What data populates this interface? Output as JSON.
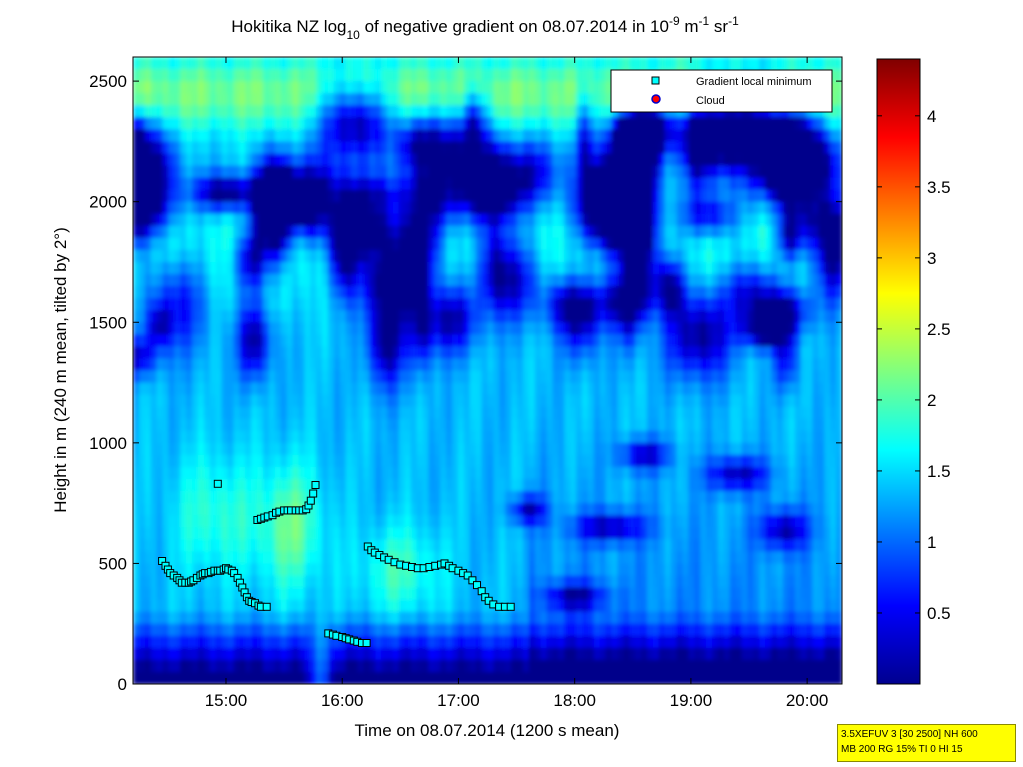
{
  "figure": {
    "title": {
      "prefix": "Hokitika NZ log",
      "prefix_sub": "10",
      "middle": " of negative gradient on 08.07.2014 in 10",
      "exp1": "-9",
      "unit1": " m",
      "exp2": "-1",
      "unit2": " sr",
      "exp3": "-1"
    },
    "xlabel": "Time on 08.07.2014 (1200 s mean)",
    "ylabel": "Height in m (240 m mean, tilted by 2°)",
    "legend": {
      "items": [
        {
          "label": "Gradient local minimum",
          "marker": "square",
          "color": "#00ffff"
        },
        {
          "label": "Cloud",
          "marker": "circle",
          "color": "#ff0000"
        }
      ]
    },
    "stamp": {
      "line1": "3.5XEFUV 3 [30 2500] NH 600",
      "line2": "MB 200 RG 15% TI 0 HI 15"
    }
  },
  "chart_data": {
    "type": "heatmap",
    "colormap": "jet",
    "x_range_hours": [
      14.2,
      20.3
    ],
    "x_ticks": [
      {
        "value": 15,
        "label": "15:00"
      },
      {
        "value": 16,
        "label": "16:00"
      },
      {
        "value": 17,
        "label": "17:00"
      },
      {
        "value": 18,
        "label": "18:00"
      },
      {
        "value": 19,
        "label": "19:00"
      },
      {
        "value": 20,
        "label": "20:00"
      }
    ],
    "ylim": [
      0,
      2600
    ],
    "y_ticks": [
      0,
      500,
      1000,
      1500,
      2000,
      2500
    ],
    "colorbar": {
      "range": [
        0,
        4.4
      ],
      "ticks": [
        0.5,
        1,
        1.5,
        2,
        2.5,
        3,
        3.5,
        4
      ]
    },
    "series": [
      {
        "name": "Gradient local minimum",
        "points": [
          [
            14.45,
            510
          ],
          [
            14.48,
            490
          ],
          [
            14.5,
            475
          ],
          [
            14.52,
            460
          ],
          [
            14.55,
            450
          ],
          [
            14.58,
            440
          ],
          [
            14.6,
            430
          ],
          [
            14.62,
            420
          ],
          [
            14.65,
            420
          ],
          [
            14.68,
            420
          ],
          [
            14.7,
            425
          ],
          [
            14.72,
            430
          ],
          [
            14.75,
            440
          ],
          [
            14.78,
            450
          ],
          [
            14.8,
            455
          ],
          [
            14.82,
            460
          ],
          [
            14.85,
            460
          ],
          [
            14.87,
            465
          ],
          [
            14.9,
            470
          ],
          [
            14.93,
            470
          ],
          [
            14.95,
            470
          ],
          [
            14.98,
            475
          ],
          [
            15.0,
            480
          ],
          [
            15.02,
            475
          ],
          [
            15.05,
            470
          ],
          [
            15.07,
            460
          ],
          [
            15.1,
            440
          ],
          [
            15.12,
            420
          ],
          [
            15.14,
            400
          ],
          [
            15.16,
            380
          ],
          [
            15.18,
            360
          ],
          [
            15.2,
            345
          ],
          [
            15.22,
            340
          ],
          [
            15.25,
            335
          ],
          [
            15.28,
            325
          ],
          [
            15.3,
            320
          ],
          [
            15.35,
            320
          ],
          [
            14.93,
            830
          ],
          [
            15.27,
            680
          ],
          [
            15.3,
            685
          ],
          [
            15.33,
            690
          ],
          [
            15.36,
            695
          ],
          [
            15.4,
            700
          ],
          [
            15.43,
            710
          ],
          [
            15.46,
            715
          ],
          [
            15.5,
            720
          ],
          [
            15.53,
            720
          ],
          [
            15.56,
            720
          ],
          [
            15.6,
            720
          ],
          [
            15.63,
            720
          ],
          [
            15.66,
            720
          ],
          [
            15.69,
            725
          ],
          [
            15.71,
            740
          ],
          [
            15.73,
            760
          ],
          [
            15.75,
            790
          ],
          [
            15.77,
            825
          ],
          [
            15.88,
            210
          ],
          [
            15.92,
            205
          ],
          [
            15.95,
            200
          ],
          [
            16.0,
            195
          ],
          [
            16.03,
            190
          ],
          [
            16.06,
            185
          ],
          [
            16.1,
            180
          ],
          [
            16.13,
            175
          ],
          [
            16.17,
            170
          ],
          [
            16.21,
            170
          ],
          [
            16.22,
            570
          ],
          [
            16.25,
            555
          ],
          [
            16.28,
            545
          ],
          [
            16.32,
            535
          ],
          [
            16.36,
            525
          ],
          [
            16.4,
            515
          ],
          [
            16.45,
            505
          ],
          [
            16.5,
            495
          ],
          [
            16.55,
            490
          ],
          [
            16.6,
            485
          ],
          [
            16.65,
            480
          ],
          [
            16.7,
            480
          ],
          [
            16.75,
            485
          ],
          [
            16.8,
            490
          ],
          [
            16.85,
            495
          ],
          [
            16.88,
            500
          ],
          [
            16.92,
            490
          ],
          [
            16.95,
            480
          ],
          [
            17.0,
            470
          ],
          [
            17.04,
            460
          ],
          [
            17.08,
            450
          ],
          [
            17.12,
            430
          ],
          [
            17.16,
            410
          ],
          [
            17.2,
            385
          ],
          [
            17.23,
            360
          ],
          [
            17.26,
            345
          ],
          [
            17.3,
            330
          ],
          [
            17.35,
            320
          ],
          [
            17.4,
            320
          ],
          [
            17.45,
            320
          ]
        ]
      },
      {
        "name": "Cloud",
        "points": []
      }
    ]
  }
}
